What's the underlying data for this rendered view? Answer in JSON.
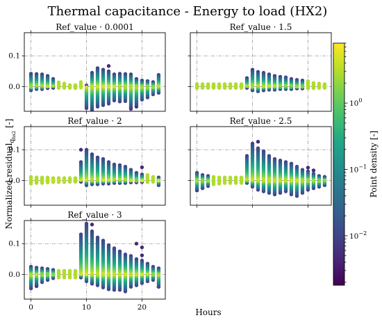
{
  "chart_data": {
    "type": "scatter",
    "title": "Thermal capacitance - Energy to load (HX2)",
    "xlabel": "Hours",
    "ylabel_main": "Normalized residual",
    "ylabel_sub": "q",
    "ylabel_subsub": "hx2",
    "ylabel_unit": "[-]",
    "xlim": [
      -1.2,
      24.2
    ],
    "ylim": [
      -0.08,
      0.175
    ],
    "x_ticks": [
      0,
      10,
      20
    ],
    "y_ticks": [
      0.0,
      0.1
    ],
    "y_tick_labels": [
      "0.0",
      "0.1"
    ],
    "grid": true,
    "colorbar": {
      "label": "Point density [-]",
      "scale": "log",
      "range": [
        0.0018,
        8
      ],
      "ticks": [
        {
          "value": 1,
          "base": "10",
          "exp": "0"
        },
        {
          "value": 0.1,
          "base": "10",
          "exp": "−1"
        },
        {
          "value": 0.01,
          "base": "10",
          "exp": "−2"
        }
      ],
      "colormap": "viridis"
    },
    "panels": [
      {
        "title": "Ref_value · 0.0001",
        "pos": [
          0.042,
          0.041,
          0.04,
          0.035,
          0.025,
          0.014,
          0.01,
          0.005,
          0.005,
          0.015,
          0.004,
          0.045,
          0.06,
          0.055,
          0.05,
          0.04,
          0.042,
          0.041,
          0.04,
          0.025,
          0.02,
          0.018,
          0.015,
          0.038
        ],
        "neg": [
          -0.012,
          -0.008,
          -0.008,
          -0.005,
          -0.004,
          -0.004,
          -0.004,
          -0.004,
          -0.005,
          -0.003,
          -0.07,
          -0.075,
          -0.065,
          -0.06,
          -0.055,
          -0.045,
          -0.048,
          -0.047,
          -0.068,
          -0.06,
          -0.042,
          -0.035,
          -0.025,
          -0.02
        ],
        "outliers": [
          [
            14,
            0.067
          ],
          [
            18,
            -0.072
          ],
          [
            19,
            -0.065
          ],
          [
            11,
            -0.073
          ]
        ]
      },
      {
        "title": "Ref_value · 1.5",
        "pos": [
          0.008,
          0.008,
          0.008,
          0.008,
          0.008,
          0.008,
          0.008,
          0.008,
          0.008,
          0.028,
          0.055,
          0.048,
          0.045,
          0.04,
          0.035,
          0.032,
          0.03,
          0.025,
          0.022,
          0.02,
          0.018,
          0.012,
          0.01,
          0.008
        ],
        "neg": [
          -0.004,
          -0.004,
          -0.004,
          -0.004,
          -0.004,
          -0.004,
          -0.004,
          -0.004,
          -0.004,
          -0.004,
          -0.012,
          -0.015,
          -0.012,
          -0.01,
          -0.01,
          -0.008,
          -0.008,
          -0.008,
          -0.006,
          -0.006,
          -0.005,
          -0.005,
          -0.004,
          -0.004
        ],
        "outliers": []
      },
      {
        "title": "Ref_value · 2",
        "pos": [
          0.012,
          0.01,
          0.01,
          0.01,
          0.008,
          0.008,
          0.008,
          0.008,
          0.008,
          0.06,
          0.1,
          0.085,
          0.075,
          0.07,
          0.06,
          0.052,
          0.05,
          0.045,
          0.035,
          0.025,
          0.02,
          0.018,
          0.012,
          0.01
        ],
        "neg": [
          -0.01,
          -0.008,
          -0.008,
          -0.006,
          -0.005,
          -0.005,
          -0.005,
          -0.004,
          -0.004,
          -0.004,
          -0.015,
          -0.012,
          -0.012,
          -0.01,
          -0.01,
          -0.008,
          -0.008,
          -0.008,
          -0.006,
          -0.006,
          -0.005,
          -0.005,
          -0.004,
          -0.015
        ],
        "outliers": [
          [
            9,
            0.1
          ],
          [
            11,
            0.085
          ],
          [
            20,
            0.043
          ]
        ]
      },
      {
        "title": "Ref_value · 2.5",
        "pos": [
          0.025,
          0.018,
          0.015,
          0.012,
          0.01,
          0.01,
          0.01,
          0.01,
          0.01,
          0.08,
          0.12,
          0.105,
          0.095,
          0.08,
          0.07,
          0.065,
          0.06,
          0.055,
          0.045,
          0.035,
          0.03,
          0.022,
          0.015,
          0.012
        ],
        "neg": [
          -0.03,
          -0.025,
          -0.018,
          -0.012,
          -0.01,
          -0.008,
          -0.008,
          -0.008,
          -0.008,
          -0.008,
          -0.02,
          -0.03,
          -0.035,
          -0.04,
          -0.045,
          -0.04,
          -0.035,
          -0.045,
          -0.05,
          -0.04,
          -0.03,
          -0.025,
          -0.02,
          -0.015
        ],
        "outliers": [
          [
            0,
            -0.032
          ],
          [
            1,
            -0.024
          ],
          [
            11,
            0.126
          ],
          [
            20,
            0.042
          ],
          [
            21,
            0.033
          ]
        ]
      },
      {
        "title": "Ref_value · 3",
        "pos": [
          0.025,
          0.022,
          0.02,
          0.018,
          0.015,
          0.012,
          0.012,
          0.012,
          0.012,
          0.13,
          0.165,
          0.14,
          0.12,
          0.11,
          0.095,
          0.085,
          0.075,
          0.065,
          0.06,
          0.05,
          0.045,
          0.035,
          0.025,
          0.02
        ],
        "neg": [
          -0.045,
          -0.035,
          -0.025,
          -0.018,
          -0.012,
          -0.01,
          -0.01,
          -0.01,
          -0.01,
          -0.01,
          -0.022,
          -0.03,
          -0.035,
          -0.042,
          -0.048,
          -0.05,
          -0.05,
          -0.055,
          -0.04,
          -0.035,
          -0.028,
          -0.022,
          -0.018,
          -0.04
        ],
        "outliers": [
          [
            0,
            -0.045
          ],
          [
            1,
            -0.038
          ],
          [
            11,
            0.162
          ],
          [
            19,
            0.1
          ],
          [
            20,
            0.088
          ],
          [
            20,
            0.062
          ],
          [
            23,
            -0.04
          ]
        ]
      }
    ]
  }
}
